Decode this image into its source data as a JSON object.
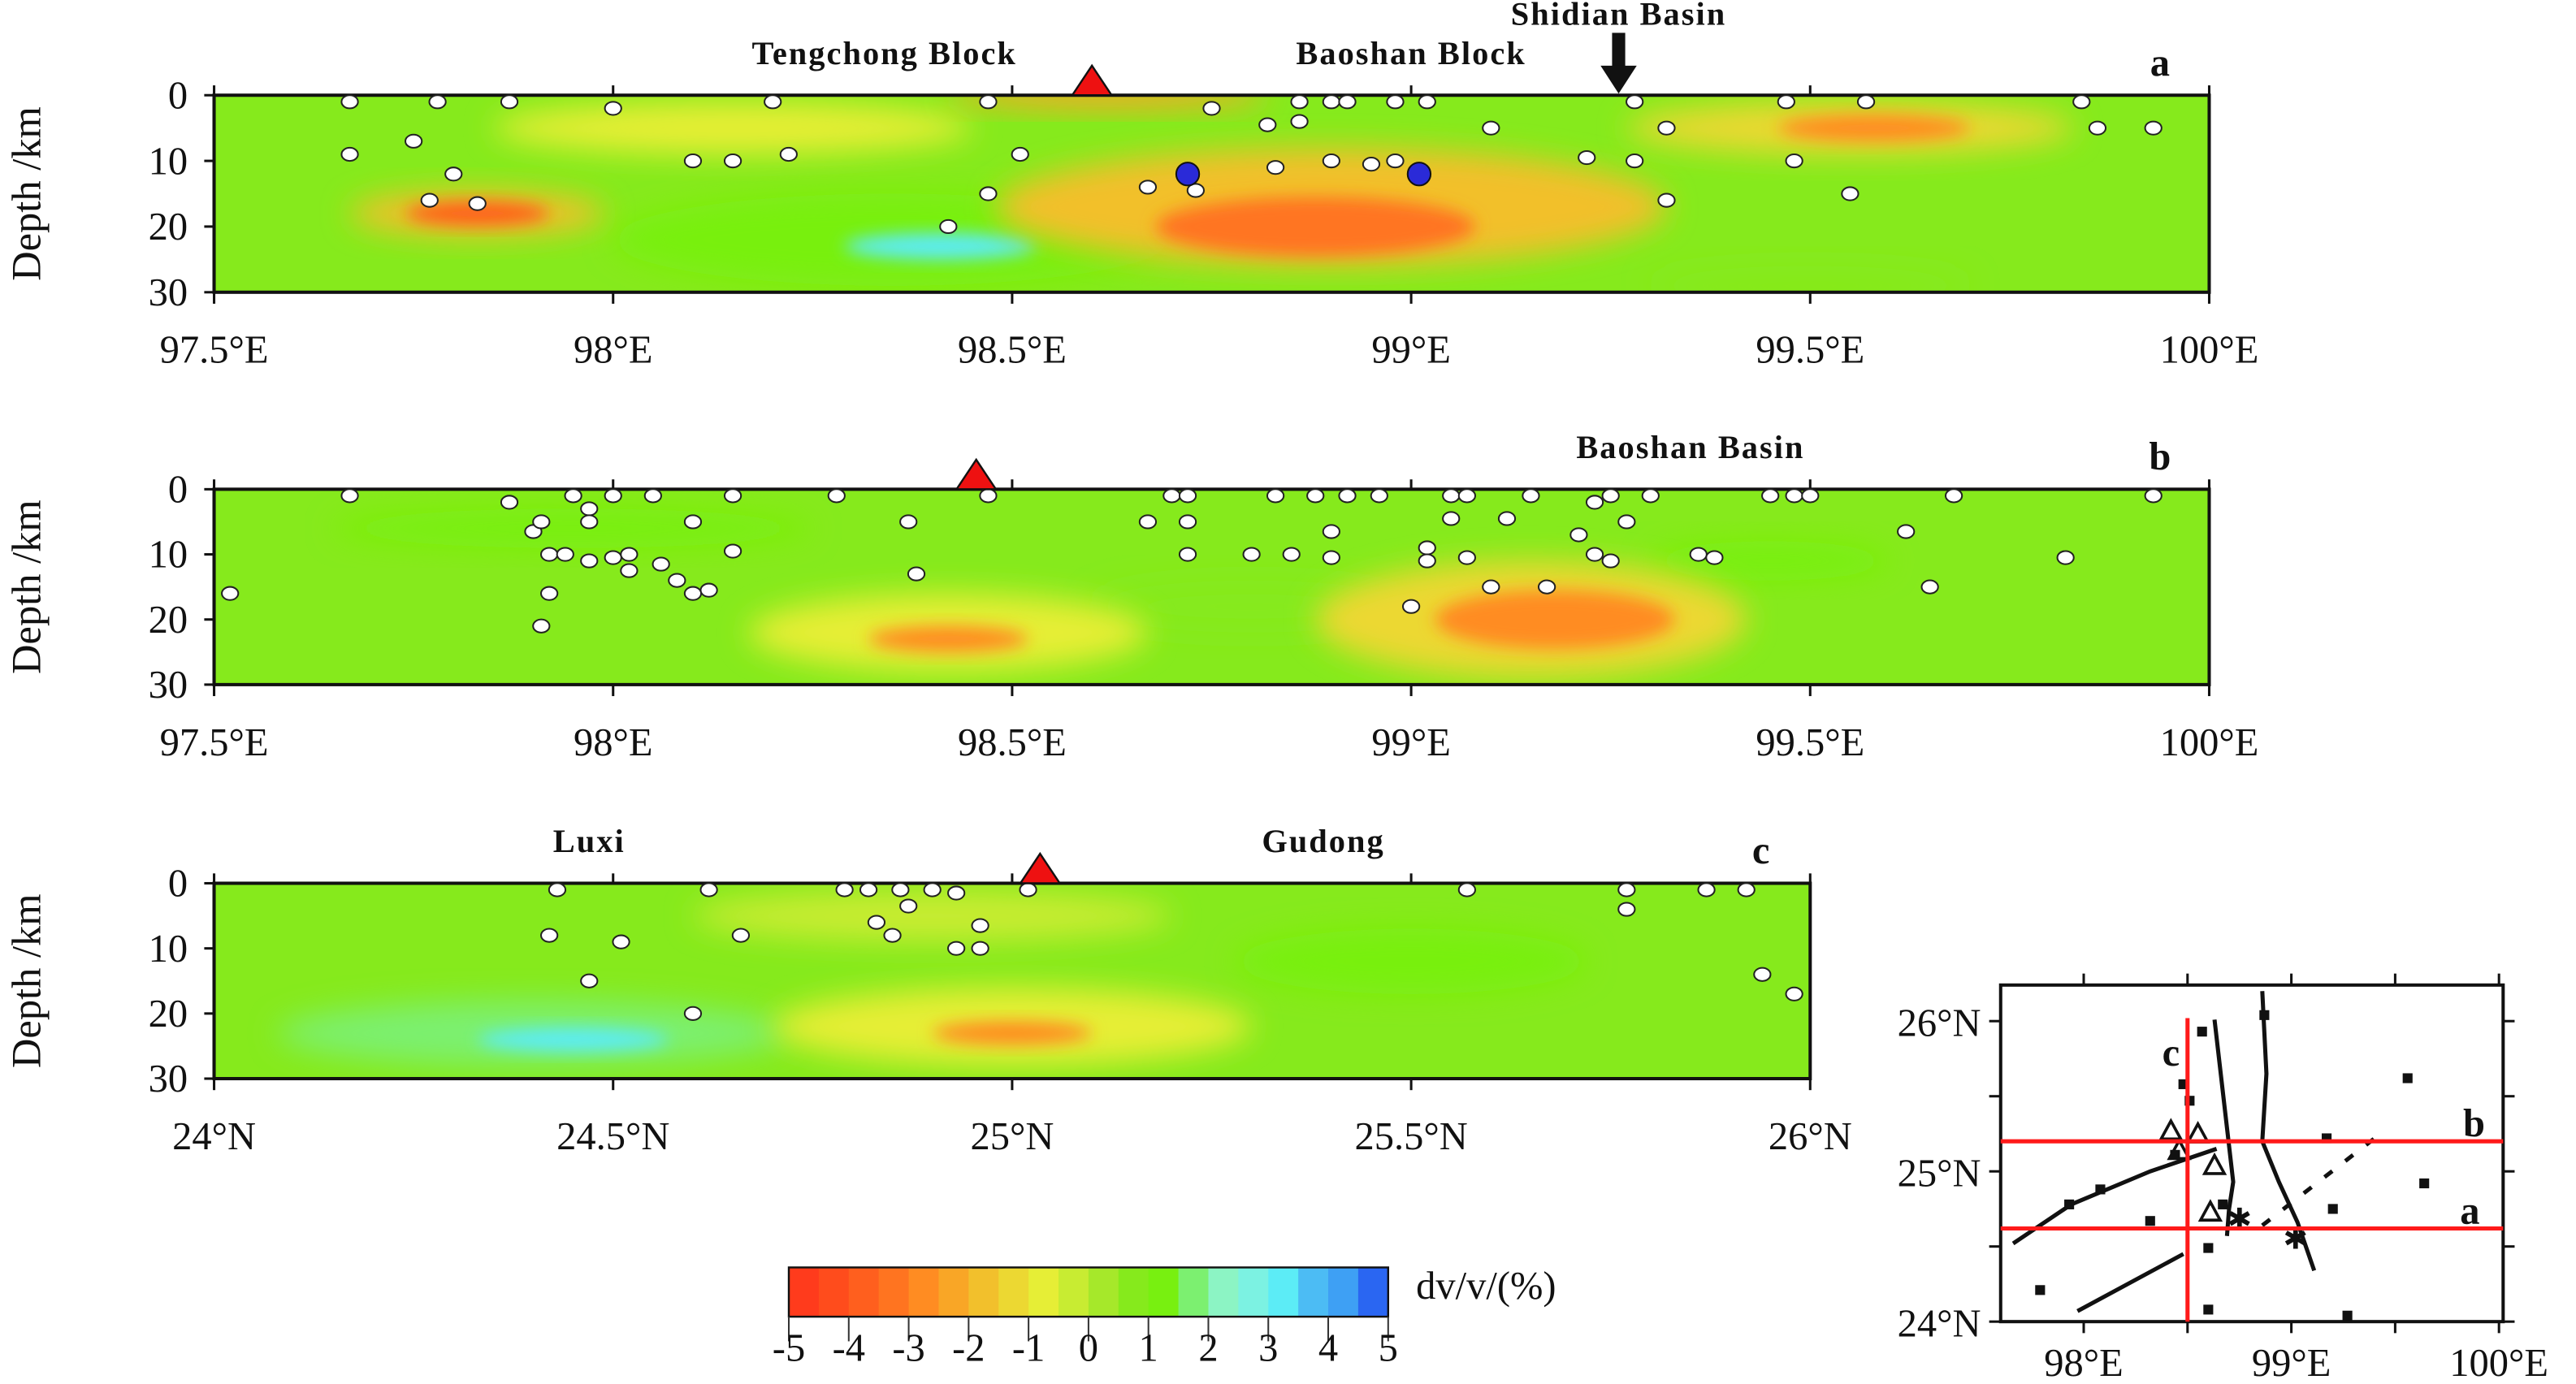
{
  "chart_data": {
    "type": "heatmap",
    "colorbar": {
      "label": "dv/v/(%)",
      "range": [
        -5,
        5
      ],
      "ticks": [
        "-5",
        "-4",
        "-3",
        "-2",
        "-1",
        "0",
        "1",
        "2",
        "3",
        "4",
        "5"
      ],
      "colors": [
        "#ff3b1c",
        "#ff4c1c",
        "#ff5f1e",
        "#ff7420",
        "#ff8c22",
        "#f9a626",
        "#f2c02c",
        "#ecd832",
        "#e6ee36",
        "#c8ec32",
        "#a6e82a",
        "#86ea1c",
        "#78f010",
        "#7cf070",
        "#8cf4c4",
        "#7cf2e2",
        "#5cecf6",
        "#4cbcf4",
        "#3ea0f4",
        "#2a66f2"
      ]
    },
    "panels": [
      {
        "id": "a",
        "panel_label": "a",
        "ylabel": "Depth /km",
        "yticks": [
          "0",
          "10",
          "20",
          "30"
        ],
        "ylim": [
          0,
          30
        ],
        "xlim": [
          97.5,
          100
        ],
        "xticks": [
          {
            "v": 97.5,
            "label": "97.5°E"
          },
          {
            "v": 98,
            "label": "98°E"
          },
          {
            "v": 98.5,
            "label": "98.5°E"
          },
          {
            "v": 99,
            "label": "99°E"
          },
          {
            "v": 99.5,
            "label": "99.5°E"
          },
          {
            "v": 100,
            "label": "100°E"
          }
        ],
        "annotations": [
          {
            "text": "Tengchong Block",
            "x": 98.34,
            "row": "top"
          },
          {
            "text": "Baoshan Block",
            "x": 99.0,
            "row": "top"
          },
          {
            "text": "Shidian Basin",
            "x": 99.26,
            "row": "high"
          }
        ],
        "volcano_triangle": 98.6,
        "arrow": 99.26,
        "anomalies": [
          {
            "x": 98.15,
            "z": 5,
            "rx": 0.3,
            "rz": 4,
            "v": -0.8
          },
          {
            "x": 98.35,
            "z": 22,
            "rx": 0.35,
            "rz": 7,
            "v": 1.2
          },
          {
            "x": 98.41,
            "z": 23,
            "rx": 0.12,
            "rz": 2,
            "v": 3.2
          },
          {
            "x": 97.83,
            "z": 18,
            "rx": 0.16,
            "rz": 3.5,
            "v": -1.8
          },
          {
            "x": 97.83,
            "z": 18,
            "rx": 0.09,
            "rz": 1.8,
            "v": -3.6
          },
          {
            "x": 98.9,
            "z": 17,
            "rx": 0.42,
            "rz": 9,
            "v": -1.6
          },
          {
            "x": 98.88,
            "z": 20,
            "rx": 0.2,
            "rz": 4.5,
            "v": -3.2
          },
          {
            "x": 99.55,
            "z": 5,
            "rx": 0.28,
            "rz": 4,
            "v": -1.2
          },
          {
            "x": 99.58,
            "z": 5,
            "rx": 0.12,
            "rz": 2,
            "v": -2.8
          },
          {
            "x": 98.62,
            "z": 0,
            "rx": 0.2,
            "rz": 2,
            "v": -2.2
          },
          {
            "x": 99.5,
            "z": 29,
            "rx": 0.2,
            "rz": 3,
            "v": 0.8
          }
        ],
        "events": [
          [
            97.67,
            1
          ],
          [
            97.78,
            1
          ],
          [
            97.87,
            1
          ],
          [
            98.0,
            2
          ],
          [
            98.2,
            1
          ],
          [
            98.47,
            1
          ],
          [
            98.75,
            2
          ],
          [
            98.86,
            1
          ],
          [
            98.9,
            1
          ],
          [
            98.92,
            1
          ],
          [
            98.98,
            1
          ],
          [
            99.02,
            1
          ],
          [
            99.28,
            1
          ],
          [
            99.47,
            1
          ],
          [
            99.57,
            1
          ],
          [
            99.84,
            1
          ],
          [
            97.67,
            9
          ],
          [
            97.75,
            7
          ],
          [
            97.8,
            12
          ],
          [
            97.77,
            16
          ],
          [
            97.83,
            16.5
          ],
          [
            98.1,
            10
          ],
          [
            98.15,
            10
          ],
          [
            98.22,
            9
          ],
          [
            98.42,
            20
          ],
          [
            98.47,
            15
          ],
          [
            98.51,
            9
          ],
          [
            98.67,
            14
          ],
          [
            98.73,
            14.5
          ],
          [
            98.82,
            4.5
          ],
          [
            98.86,
            4
          ],
          [
            98.83,
            11
          ],
          [
            98.9,
            10
          ],
          [
            98.95,
            10.5
          ],
          [
            98.98,
            10
          ],
          [
            99.1,
            5
          ],
          [
            99.22,
            9.5
          ],
          [
            99.28,
            10
          ],
          [
            99.32,
            5
          ],
          [
            99.32,
            16
          ],
          [
            99.48,
            10
          ],
          [
            99.55,
            15
          ],
          [
            99.86,
            5
          ],
          [
            99.93,
            5
          ]
        ],
        "large_events": [
          [
            98.72,
            12
          ],
          [
            99.01,
            12
          ]
        ]
      },
      {
        "id": "b",
        "panel_label": "b",
        "ylabel": "Depth /km",
        "yticks": [
          "0",
          "10",
          "20",
          "30"
        ],
        "ylim": [
          0,
          30
        ],
        "xlim": [
          97.5,
          100
        ],
        "xticks": [
          {
            "v": 97.5,
            "label": "97.5°E"
          },
          {
            "v": 98,
            "label": "98°E"
          },
          {
            "v": 98.5,
            "label": "98.5°E"
          },
          {
            "v": 99,
            "label": "99°E"
          },
          {
            "v": 99.5,
            "label": "99.5°E"
          },
          {
            "v": 100,
            "label": "100°E"
          }
        ],
        "annotations": [
          {
            "text": "Baoshan Basin",
            "x": 99.35,
            "row": "top"
          }
        ],
        "volcano_triangle": 98.455,
        "anomalies": [
          {
            "x": 97.95,
            "z": 6,
            "rx": 0.3,
            "rz": 3,
            "v": 1.0
          },
          {
            "x": 99.45,
            "z": 11,
            "rx": 0.15,
            "rz": 3,
            "v": 1.0
          },
          {
            "x": 98.8,
            "z": 18,
            "rx": 0.2,
            "rz": 4,
            "v": 0.7
          },
          {
            "x": 98.42,
            "z": 22,
            "rx": 0.25,
            "rz": 6,
            "v": -1.0
          },
          {
            "x": 98.42,
            "z": 23,
            "rx": 0.1,
            "rz": 2,
            "v": -2.6
          },
          {
            "x": 99.15,
            "z": 20,
            "rx": 0.27,
            "rz": 9,
            "v": -1.4
          },
          {
            "x": 99.18,
            "z": 20,
            "rx": 0.15,
            "rz": 4.5,
            "v": -3.0
          }
        ],
        "events": [
          [
            97.67,
            1
          ],
          [
            97.87,
            2
          ],
          [
            97.9,
            6.5
          ],
          [
            97.91,
            5
          ],
          [
            97.95,
            1
          ],
          [
            97.97,
            3
          ],
          [
            97.97,
            5
          ],
          [
            98.0,
            1
          ],
          [
            98.05,
            1
          ],
          [
            98.15,
            1
          ],
          [
            98.28,
            1
          ],
          [
            98.47,
            1
          ],
          [
            98.7,
            1
          ],
          [
            98.72,
            1
          ],
          [
            98.83,
            1
          ],
          [
            98.88,
            1
          ],
          [
            98.92,
            1
          ],
          [
            98.96,
            1
          ],
          [
            99.05,
            1
          ],
          [
            99.07,
            1
          ],
          [
            99.15,
            1
          ],
          [
            99.23,
            2
          ],
          [
            99.25,
            1
          ],
          [
            99.3,
            1
          ],
          [
            99.45,
            1
          ],
          [
            99.48,
            1
          ],
          [
            99.5,
            1
          ],
          [
            99.68,
            1
          ],
          [
            99.93,
            1
          ],
          [
            97.52,
            16
          ],
          [
            97.92,
            10
          ],
          [
            97.94,
            10
          ],
          [
            97.97,
            11
          ],
          [
            98.0,
            10.5
          ],
          [
            98.02,
            10
          ],
          [
            98.02,
            12.5
          ],
          [
            98.06,
            11.5
          ],
          [
            98.08,
            14
          ],
          [
            98.1,
            16
          ],
          [
            98.12,
            15.5
          ],
          [
            98.1,
            5
          ],
          [
            98.15,
            9.5
          ],
          [
            98.37,
            5
          ],
          [
            98.38,
            13
          ],
          [
            98.67,
            5
          ],
          [
            98.72,
            5
          ],
          [
            98.72,
            10
          ],
          [
            98.8,
            10
          ],
          [
            98.85,
            10
          ],
          [
            98.9,
            6.5
          ],
          [
            98.9,
            10.5
          ],
          [
            99.02,
            9
          ],
          [
            99.02,
            11
          ],
          [
            99.07,
            10.5
          ],
          [
            99.05,
            4.5
          ],
          [
            99.1,
            15
          ],
          [
            99.12,
            4.5
          ],
          [
            99.17,
            15
          ],
          [
            99.21,
            7
          ],
          [
            99.23,
            10
          ],
          [
            99.25,
            11
          ],
          [
            99.27,
            5
          ],
          [
            99.36,
            10
          ],
          [
            99.38,
            10.5
          ],
          [
            99.62,
            6.5
          ],
          [
            99.65,
            15
          ],
          [
            99.82,
            10.5
          ],
          [
            97.92,
            16
          ],
          [
            97.91,
            21
          ],
          [
            99.0,
            18
          ]
        ],
        "large_events": []
      },
      {
        "id": "c",
        "panel_label": "c",
        "ylabel": "Depth /km",
        "yticks": [
          "0",
          "10",
          "20",
          "30"
        ],
        "ylim": [
          0,
          30
        ],
        "xlim": [
          24,
          26
        ],
        "xticks": [
          {
            "v": 24,
            "label": "24°N"
          },
          {
            "v": 24.5,
            "label": "24.5°N"
          },
          {
            "v": 25,
            "label": "25°N"
          },
          {
            "v": 25.5,
            "label": "25.5°N"
          },
          {
            "v": 26,
            "label": "26°N"
          }
        ],
        "annotations": [
          {
            "text": "Luxi",
            "x": 24.47,
            "row": "top"
          },
          {
            "text": "Gudong",
            "x": 25.39,
            "row": "top"
          }
        ],
        "volcano_triangle": 25.035,
        "anomalies": [
          {
            "x": 24.9,
            "z": 5,
            "rx": 0.3,
            "rz": 4,
            "v": -0.5
          },
          {
            "x": 25.5,
            "z": 12,
            "rx": 0.22,
            "rz": 5,
            "v": 1.3
          },
          {
            "x": 24.4,
            "z": 23,
            "rx": 0.32,
            "rz": 5,
            "v": 1.6
          },
          {
            "x": 24.45,
            "z": 24,
            "rx": 0.12,
            "rz": 1.8,
            "v": 3.3
          },
          {
            "x": 25.0,
            "z": 22,
            "rx": 0.3,
            "rz": 6,
            "v": -1.0
          },
          {
            "x": 25.0,
            "z": 23,
            "rx": 0.1,
            "rz": 1.8,
            "v": -2.6
          }
        ],
        "events": [
          [
            24.43,
            1
          ],
          [
            24.62,
            1
          ],
          [
            24.79,
            1
          ],
          [
            24.82,
            1
          ],
          [
            24.86,
            1
          ],
          [
            24.9,
            1
          ],
          [
            24.93,
            1.5
          ],
          [
            25.02,
            1
          ],
          [
            25.57,
            1
          ],
          [
            25.77,
            1
          ],
          [
            25.87,
            1
          ],
          [
            25.92,
            1
          ],
          [
            25.77,
            4
          ],
          [
            24.42,
            8
          ],
          [
            24.51,
            9
          ],
          [
            24.66,
            8
          ],
          [
            24.83,
            6
          ],
          [
            24.85,
            8
          ],
          [
            24.87,
            3.5
          ],
          [
            24.96,
            6.5
          ],
          [
            24.93,
            10
          ],
          [
            24.96,
            10
          ],
          [
            24.47,
            15
          ],
          [
            24.6,
            20
          ],
          [
            25.94,
            14
          ],
          [
            25.98,
            17
          ]
        ],
        "large_events": []
      }
    ],
    "map": {
      "xlim": [
        97.6,
        100.02
      ],
      "ylim": [
        24,
        26.24
      ],
      "xticks": [
        {
          "v": 98,
          "label": "98°E"
        },
        {
          "v": 99,
          "label": "99°E"
        },
        {
          "v": 100,
          "label": "100°E"
        }
      ],
      "yticks": [
        {
          "v": 24,
          "label": "24°N"
        },
        {
          "v": 25,
          "label": "25°N"
        },
        {
          "v": 26,
          "label": "26°N"
        }
      ],
      "profiles": [
        {
          "label": "a",
          "type": "lat",
          "value": 24.62
        },
        {
          "label": "b",
          "type": "lat",
          "value": 25.2
        },
        {
          "label": "c",
          "type": "lon",
          "value": 98.5
        }
      ],
      "profile_color": "#ff1a1a",
      "faults": [
        [
          [
            98.63,
            26.01
          ],
          [
            98.69,
            25.29
          ],
          [
            98.72,
            24.93
          ],
          [
            98.7,
            24.75
          ],
          [
            98.69,
            24.57
          ]
        ],
        [
          [
            98.86,
            26.2
          ],
          [
            98.88,
            25.65
          ],
          [
            98.86,
            25.2
          ],
          [
            98.94,
            24.93
          ],
          [
            99.03,
            24.66
          ],
          [
            99.11,
            24.34
          ]
        ],
        [
          [
            97.66,
            24.52
          ],
          [
            97.94,
            24.78
          ],
          [
            98.32,
            25.0
          ],
          [
            98.64,
            25.15
          ]
        ],
        [
          [
            97.97,
            24.07
          ],
          [
            98.48,
            24.45
          ]
        ]
      ],
      "dashed_faults": [
        [
          [
            98.86,
            24.64
          ],
          [
            99.41,
            25.23
          ]
        ]
      ],
      "stations": [
        [
          98.57,
          25.93
        ],
        [
          98.87,
          26.04
        ],
        [
          99.56,
          25.62
        ],
        [
          98.48,
          25.58
        ],
        [
          98.51,
          25.47
        ],
        [
          99.17,
          25.22
        ],
        [
          99.64,
          24.92
        ],
        [
          98.08,
          24.88
        ],
        [
          97.93,
          24.78
        ],
        [
          98.32,
          24.67
        ],
        [
          98.67,
          24.78
        ],
        [
          99.2,
          24.75
        ],
        [
          98.6,
          24.49
        ],
        [
          97.79,
          24.21
        ],
        [
          98.6,
          24.08
        ],
        [
          99.27,
          24.04
        ],
        [
          98.44,
          25.11
        ]
      ],
      "volcanoes": [
        [
          98.42,
          25.27
        ],
        [
          98.55,
          25.25
        ],
        [
          98.46,
          25.14
        ],
        [
          98.63,
          25.04
        ],
        [
          98.61,
          24.73
        ]
      ],
      "large_events": [
        [
          98.75,
          24.69
        ],
        [
          99.02,
          24.56
        ]
      ],
      "labels": [
        {
          "text": "c",
          "x": 98.42,
          "y": 25.79
        },
        {
          "text": "b",
          "x": 99.88,
          "y": 25.32
        },
        {
          "text": "a",
          "x": 99.86,
          "y": 24.74
        }
      ]
    }
  }
}
